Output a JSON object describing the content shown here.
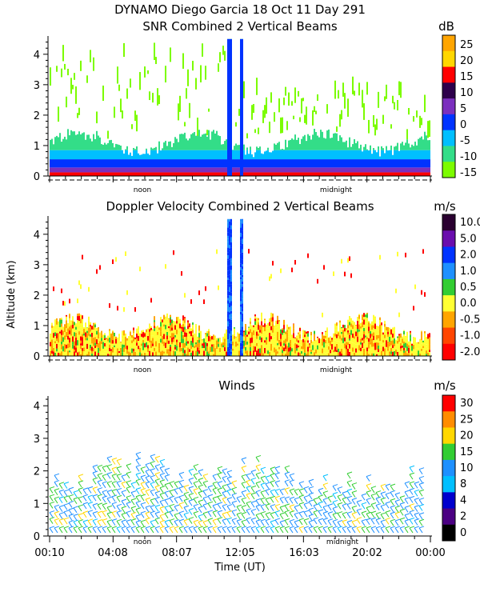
{
  "figure": {
    "title_line1": "DYNAMO Diego Garcia  18 Oct 11 Day 291",
    "y_axis_label": "Altitude (km)",
    "x_axis_label": "Time (UT)",
    "x_tick_labels": [
      "00:10",
      "04:08",
      "08:07",
      "12:05",
      "16:03",
      "20:02",
      "00:00"
    ],
    "noon_label": "noon",
    "midnight_label": "midnight"
  },
  "chart_data": [
    {
      "type": "heatmap",
      "title": "SNR Combined 2 Vertical Beams",
      "ylabel": "Altitude (km)",
      "ylim": [
        0,
        4.6
      ],
      "y_ticks": [
        0,
        1,
        2,
        3,
        4
      ],
      "x_range": [
        "00:10",
        "00:00"
      ],
      "colorbar": {
        "unit": "dB",
        "ticks": [
          "25",
          "20",
          "15",
          "10",
          "5",
          "0",
          "-5",
          "-10",
          "-15"
        ],
        "colors": [
          "#ffa500",
          "#ffd700",
          "#ff0000",
          "#2d004b",
          "#7b2fbe",
          "#0033ff",
          "#00bfff",
          "#33dd88",
          "#7cfc00"
        ]
      }
    },
    {
      "type": "heatmap",
      "title": "Doppler Velocity Combined 2 Vertical Beams",
      "ylabel": "Altitude (km)",
      "ylim": [
        0,
        4.6
      ],
      "y_ticks": [
        0,
        1,
        2,
        3,
        4
      ],
      "x_range": [
        "00:10",
        "00:00"
      ],
      "colorbar": {
        "unit": "m/s",
        "ticks": [
          "10.0",
          "5.0",
          "2.0",
          "1.0",
          "0.5",
          "0.0",
          "-0.5",
          "-1.0",
          "-2.0"
        ],
        "colors": [
          "#2a0030",
          "#6a0dad",
          "#0033ff",
          "#1e90ff",
          "#32cd32",
          "#ffff33",
          "#ffa500",
          "#ff4500",
          "#ff0000"
        ]
      }
    },
    {
      "type": "scatter",
      "title": "Winds",
      "ylabel": "Altitude (km)",
      "xlabel": "Time (UT)",
      "ylim": [
        0,
        4.3
      ],
      "y_ticks": [
        0,
        1,
        2,
        3,
        4
      ],
      "x_range": [
        "00:10",
        "00:00"
      ],
      "colorbar": {
        "unit": "m/s",
        "ticks": [
          "30",
          "25",
          "20",
          "15",
          "10",
          "8",
          "4",
          "2",
          "0"
        ],
        "colors": [
          "#ff0000",
          "#ff8c00",
          "#ffd700",
          "#32cd32",
          "#1e90ff",
          "#00bfff",
          "#0000cd",
          "#4b0082",
          "#000000"
        ]
      }
    }
  ]
}
